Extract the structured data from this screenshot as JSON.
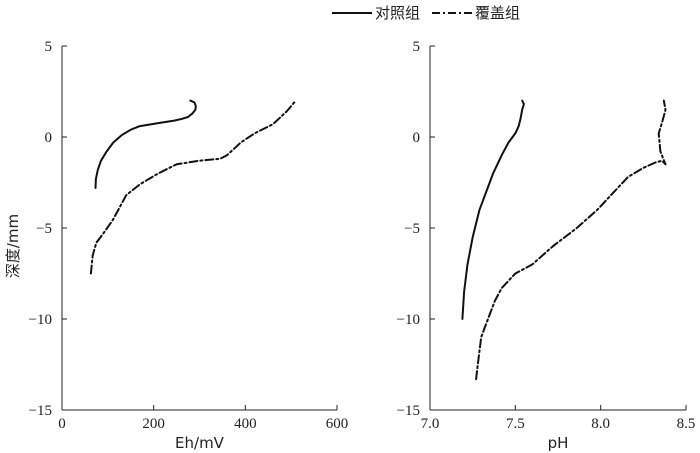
{
  "legend": {
    "position": "top-center",
    "items": [
      {
        "label": "对照组",
        "style": "solid"
      },
      {
        "label": "覆盖组",
        "style": "dashdot"
      }
    ]
  },
  "chart_data": [
    {
      "type": "line",
      "xlabel": "Eh/mV",
      "ylabel": "深度/mm",
      "xlim": [
        0,
        600
      ],
      "ylim": [
        -15,
        5
      ],
      "xticks": [
        "0",
        "200",
        "400",
        "600"
      ],
      "yticks": [
        "5",
        "0",
        "−5",
        "−10",
        "−15"
      ],
      "grid": false,
      "series": [
        {
          "name": "对照组",
          "style": "solid",
          "x": [
            73,
            74,
            78,
            85,
            97,
            112,
            130,
            150,
            170,
            195,
            220,
            245,
            262,
            275,
            285,
            291,
            292,
            289,
            280
          ],
          "y": [
            -2.8,
            -2.3,
            -1.8,
            -1.3,
            -0.8,
            -0.3,
            0.1,
            0.4,
            0.6,
            0.7,
            0.8,
            0.9,
            1.0,
            1.1,
            1.3,
            1.5,
            1.7,
            1.9,
            2.0
          ]
        },
        {
          "name": "覆盖组",
          "style": "dashdot",
          "x": [
            63,
            67,
            75,
            90,
            110,
            125,
            140,
            170,
            210,
            250,
            300,
            345,
            360,
            390,
            420,
            460,
            490,
            510
          ],
          "y": [
            -7.5,
            -6.5,
            -5.8,
            -5.3,
            -4.6,
            -3.9,
            -3.2,
            -2.6,
            -2.0,
            -1.5,
            -1.3,
            -1.2,
            -1.0,
            -0.3,
            0.2,
            0.7,
            1.4,
            2.0
          ]
        }
      ]
    },
    {
      "type": "line",
      "xlabel": "pH",
      "ylabel": "",
      "xlim": [
        7.0,
        8.5
      ],
      "ylim": [
        -15,
        5
      ],
      "xticks": [
        "7.0",
        "7.5",
        "8.0",
        "8.5"
      ],
      "yticks": [
        "5",
        "0",
        "−5",
        "−10",
        "−15"
      ],
      "grid": false,
      "series": [
        {
          "name": "对照组",
          "style": "solid",
          "x": [
            7.19,
            7.2,
            7.22,
            7.25,
            7.29,
            7.33,
            7.37,
            7.42,
            7.46,
            7.5,
            7.52,
            7.53,
            7.54,
            7.55,
            7.54
          ],
          "y": [
            -10.0,
            -8.5,
            -7.0,
            -5.5,
            -4.0,
            -3.0,
            -2.0,
            -1.0,
            -0.3,
            0.2,
            0.6,
            1.0,
            1.5,
            1.8,
            2.0
          ]
        },
        {
          "name": "覆盖组",
          "style": "dashdot",
          "x": [
            7.27,
            7.28,
            7.3,
            7.34,
            7.38,
            7.42,
            7.5,
            7.6,
            7.72,
            7.86,
            7.98,
            8.08,
            8.16,
            8.25,
            8.32,
            8.36,
            8.38,
            8.35,
            8.34,
            8.36,
            8.38,
            8.37
          ],
          "y": [
            -13.3,
            -12.5,
            -11.0,
            -10.0,
            -9.0,
            -8.3,
            -7.5,
            -7.0,
            -6.0,
            -5.0,
            -4.0,
            -3.0,
            -2.2,
            -1.7,
            -1.4,
            -1.3,
            -1.5,
            -0.8,
            0.2,
            0.8,
            1.5,
            2.0
          ]
        }
      ]
    }
  ]
}
